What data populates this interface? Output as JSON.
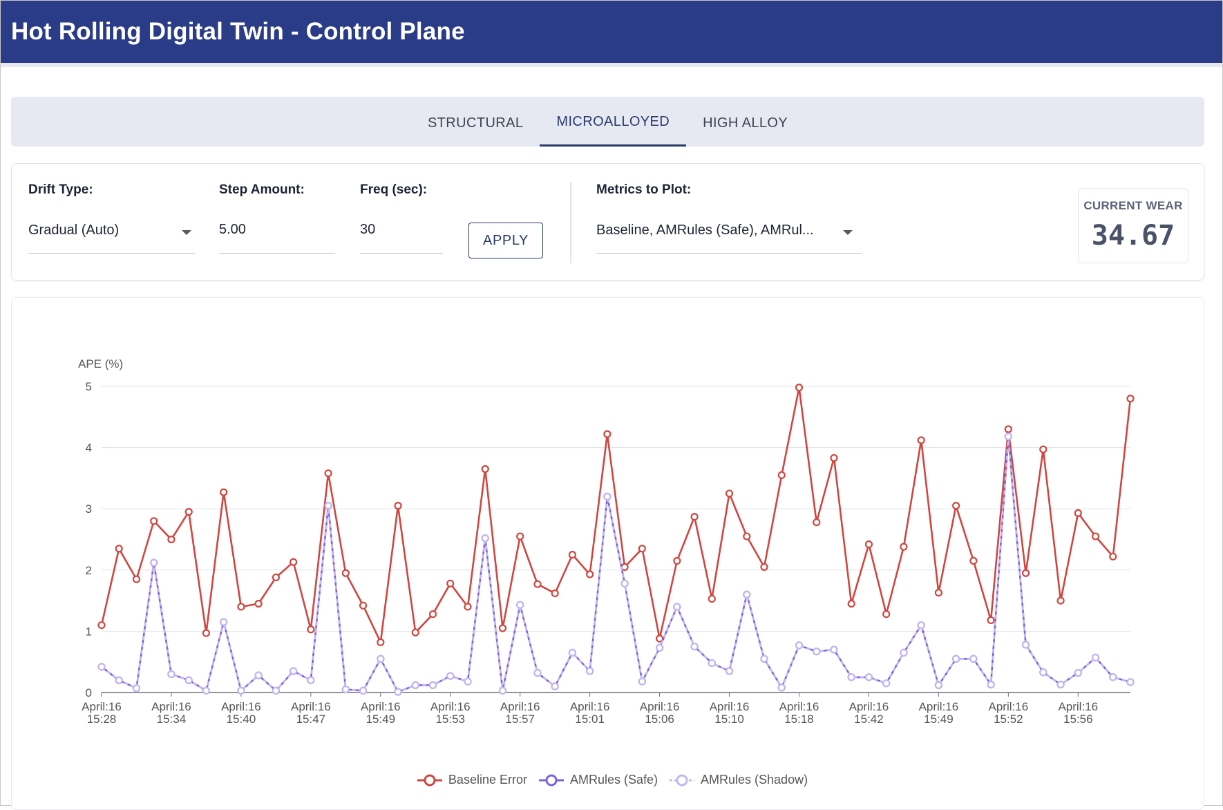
{
  "header": {
    "title": "Hot Rolling Digital Twin - Control Plane"
  },
  "tabs": [
    {
      "label": "STRUCTURAL",
      "active": false
    },
    {
      "label": "MICROALLOYED",
      "active": true
    },
    {
      "label": "HIGH ALLOY",
      "active": false
    }
  ],
  "controls": {
    "drift_type": {
      "label": "Drift Type:",
      "value": "Gradual (Auto)"
    },
    "step_amount": {
      "label": "Step Amount:",
      "value": "5.00"
    },
    "freq": {
      "label": "Freq (sec):",
      "value": "30"
    },
    "apply_label": "APPLY",
    "metrics": {
      "label": "Metrics to Plot:",
      "value": "Baseline, AMRules (Safe), AMRul..."
    },
    "wear": {
      "label": "CURRENT WEAR",
      "value": "34.67"
    }
  },
  "colors": {
    "header_bg": "#2a3b87",
    "baseline": "#d0463f",
    "amrules_safe": "#7b61e0",
    "amrules_shadow": "#c2b6f3"
  },
  "chart_data": {
    "type": "line",
    "ylabel": "APE (%)",
    "ylim": [
      0,
      5
    ],
    "yticks": [
      0,
      1,
      2,
      3,
      4,
      5
    ],
    "grid": true,
    "legend": "bottom-center",
    "x_tick_labels": [
      [
        "April:16",
        "15:28"
      ],
      [
        "April:16",
        "15:34"
      ],
      [
        "April:16",
        "15:40"
      ],
      [
        "April:16",
        "15:47"
      ],
      [
        "April:16",
        "15:49"
      ],
      [
        "April:16",
        "15:53"
      ],
      [
        "April:16",
        "15:57"
      ],
      [
        "April:16",
        "15:01"
      ],
      [
        "April:16",
        "15:06"
      ],
      [
        "April:16",
        "15:10"
      ],
      [
        "April:16",
        "15:18"
      ],
      [
        "April:16",
        "15:42"
      ],
      [
        "April:16",
        "15:49"
      ],
      [
        "April:16",
        "15:52"
      ],
      [
        "April:16",
        "15:56"
      ]
    ],
    "x_tick_every": 4,
    "series": [
      {
        "name": "Baseline Error",
        "color": "#d0463f",
        "values": [
          1.1,
          2.35,
          1.85,
          2.8,
          2.5,
          2.95,
          0.97,
          3.27,
          1.4,
          1.45,
          1.88,
          2.13,
          1.03,
          3.58,
          1.95,
          1.42,
          0.82,
          3.05,
          0.98,
          1.28,
          1.78,
          1.4,
          3.65,
          1.05,
          2.55,
          1.77,
          1.62,
          2.25,
          1.93,
          4.22,
          2.05,
          2.35,
          0.88,
          2.15,
          2.87,
          1.53,
          3.25,
          2.55,
          2.05,
          3.55,
          4.98,
          2.78,
          3.83,
          1.45,
          2.42,
          1.28,
          2.38,
          4.12,
          1.63,
          3.05,
          2.15,
          1.18,
          4.3,
          1.95,
          3.97,
          1.5,
          2.93,
          2.55,
          2.22,
          4.8
        ]
      },
      {
        "name": "AMRules (Safe)",
        "color": "#7b61e0",
        "values": [
          0.42,
          0.2,
          0.07,
          2.12,
          0.3,
          0.2,
          0.03,
          1.15,
          0.03,
          0.28,
          0.03,
          0.35,
          0.2,
          3.05,
          0.05,
          0.03,
          0.55,
          0.01,
          0.12,
          0.12,
          0.27,
          0.18,
          2.52,
          0.03,
          1.43,
          0.32,
          0.1,
          0.65,
          0.35,
          3.2,
          1.78,
          0.18,
          0.73,
          1.4,
          0.75,
          0.48,
          0.35,
          1.6,
          0.55,
          0.08,
          0.77,
          0.67,
          0.7,
          0.25,
          0.25,
          0.15,
          0.65,
          1.1,
          0.12,
          0.55,
          0.55,
          0.13,
          4.18,
          0.78,
          0.33,
          0.13,
          0.32,
          0.57,
          0.25,
          0.17
        ]
      },
      {
        "name": "AMRules (Shadow)",
        "color": "#c2b6f3",
        "values": [
          0.42,
          0.2,
          0.07,
          2.12,
          0.3,
          0.2,
          0.03,
          1.15,
          0.03,
          0.28,
          0.03,
          0.35,
          0.2,
          3.05,
          0.05,
          0.03,
          0.55,
          0.01,
          0.12,
          0.12,
          0.27,
          0.18,
          2.52,
          0.03,
          1.43,
          0.32,
          0.1,
          0.65,
          0.35,
          3.2,
          1.78,
          0.18,
          0.73,
          1.4,
          0.75,
          0.48,
          0.35,
          1.6,
          0.55,
          0.08,
          0.77,
          0.67,
          0.7,
          0.25,
          0.25,
          0.15,
          0.65,
          1.1,
          0.12,
          0.55,
          0.55,
          0.13,
          4.18,
          0.78,
          0.33,
          0.13,
          0.32,
          0.57,
          0.25,
          0.17
        ]
      }
    ]
  }
}
